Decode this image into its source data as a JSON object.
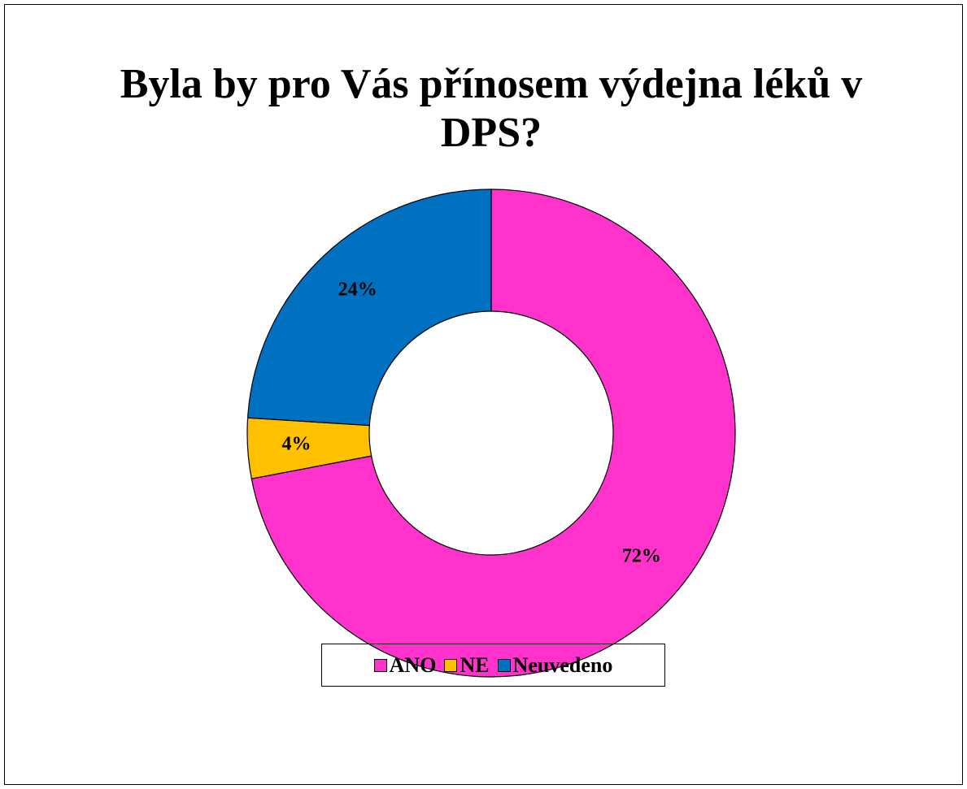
{
  "chart_data": {
    "type": "donut",
    "title": "Byla by pro Vás přínosem výdejna léků v DPS?",
    "categories": [
      "ANO",
      "NE",
      "Neuvedeno"
    ],
    "values": [
      72,
      4,
      24
    ],
    "value_labels": [
      "72%",
      "4%",
      "24%"
    ],
    "colors": [
      "#FF33CC",
      "#FFC000",
      "#0070C0"
    ],
    "legend": "bottom"
  }
}
